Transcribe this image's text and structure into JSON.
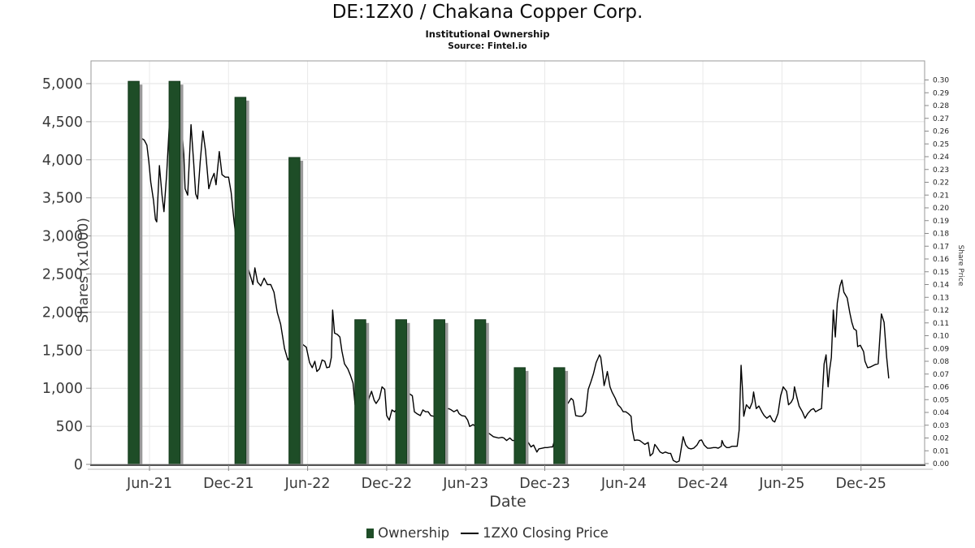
{
  "header": {
    "title": "DE:1ZX0 / Chakana Copper Corp.",
    "subtitle": "Institutional Ownership",
    "source": "Source: Fintel.io"
  },
  "axes": {
    "x": {
      "label": "Date",
      "ticks": [
        "Jun-21",
        "Dec-21",
        "Jun-22",
        "Dec-22",
        "Jun-23",
        "Dec-23",
        "Jun-24",
        "Dec-24",
        "Jun-25",
        "Dec-25"
      ],
      "tick_month_offsets": [
        0,
        6,
        12,
        18,
        24,
        30,
        36,
        42,
        48,
        54
      ]
    },
    "y_left": {
      "label": "Shares (x1000)",
      "min": 0,
      "max": 5000,
      "step": 500
    },
    "y_right": {
      "label": "Share Price",
      "min": 0.0,
      "max": 0.3,
      "step": 0.01
    }
  },
  "legend": {
    "ownership": "Ownership",
    "closing_price": "1ZX0 Closing Price"
  },
  "colors": {
    "bar": "#1e4d27",
    "bar_edge": "#163a1d",
    "bar_shadow": "#9a9a9a",
    "line": "#000000",
    "grid_h": "#e0e0e0",
    "grid_v": "#e9e9e9",
    "border": "#9a9a9a",
    "axis_bottom": "#555555",
    "axis_under": "#bbbbbb",
    "tick": "#888888",
    "tick_text": "#3a3a3a"
  },
  "chart_data": {
    "type": "combo",
    "x_unit": "months since Jun-2021 (fractional)",
    "title": "DE:1ZX0 / Chakana Copper Corp. Institutional Ownership",
    "bars": {
      "name": "Ownership (Shares x1000)",
      "points": [
        {
          "m": -1.2,
          "date": "May-21",
          "shares": 5030
        },
        {
          "m": 1.9,
          "date": "Aug-21",
          "shares": 5030
        },
        {
          "m": 6.9,
          "date": "Jan-22",
          "shares": 4820
        },
        {
          "m": 11.0,
          "date": "May-22",
          "shares": 4030
        },
        {
          "m": 16.0,
          "date": "Oct-22",
          "shares": 1900
        },
        {
          "m": 19.1,
          "date": "Jan-23",
          "shares": 1900
        },
        {
          "m": 22.0,
          "date": "Apr-23",
          "shares": 1900
        },
        {
          "m": 25.1,
          "date": "Jul-23",
          "shares": 1900
        },
        {
          "m": 28.1,
          "date": "Oct-23",
          "shares": 1270
        },
        {
          "m": 31.1,
          "date": "Jan-24",
          "shares": 1270
        }
      ]
    },
    "line": {
      "name": "1ZX0 Closing Price",
      "points": [
        [
          -0.7,
          0.255
        ],
        [
          -0.4,
          0.253
        ],
        [
          -0.2,
          0.249
        ],
        [
          -0.05,
          0.236
        ],
        [
          0.1,
          0.22
        ],
        [
          0.3,
          0.206
        ],
        [
          0.45,
          0.191
        ],
        [
          0.55,
          0.189
        ],
        [
          0.75,
          0.233
        ],
        [
          0.95,
          0.21
        ],
        [
          1.1,
          0.197
        ],
        [
          1.3,
          0.226
        ],
        [
          1.5,
          0.264
        ],
        [
          1.6,
          0.274
        ],
        [
          2.4,
          0.269
        ],
        [
          2.6,
          0.242
        ],
        [
          2.7,
          0.215
        ],
        [
          2.9,
          0.21
        ],
        [
          3.15,
          0.265
        ],
        [
          3.35,
          0.236
        ],
        [
          3.5,
          0.211
        ],
        [
          3.65,
          0.207
        ],
        [
          3.85,
          0.236
        ],
        [
          4.05,
          0.26
        ],
        [
          4.25,
          0.245
        ],
        [
          4.5,
          0.215
        ],
        [
          4.7,
          0.222
        ],
        [
          4.9,
          0.227
        ],
        [
          5.05,
          0.218
        ],
        [
          5.3,
          0.244
        ],
        [
          5.5,
          0.226
        ],
        [
          5.75,
          0.224
        ],
        [
          6.0,
          0.224
        ],
        [
          6.2,
          0.212
        ],
        [
          6.4,
          0.191
        ],
        [
          6.55,
          0.178
        ],
        [
          7.45,
          0.154
        ],
        [
          7.65,
          0.147
        ],
        [
          7.85,
          0.14
        ],
        [
          8.0,
          0.153
        ],
        [
          8.2,
          0.142
        ],
        [
          8.45,
          0.139
        ],
        [
          8.7,
          0.145
        ],
        [
          8.95,
          0.14
        ],
        [
          9.2,
          0.14
        ],
        [
          9.45,
          0.134
        ],
        [
          9.7,
          0.118
        ],
        [
          9.95,
          0.109
        ],
        [
          10.25,
          0.09
        ],
        [
          10.5,
          0.081
        ],
        [
          11.4,
          0.0965
        ],
        [
          11.65,
          0.093
        ],
        [
          11.9,
          0.091
        ],
        [
          12.15,
          0.079
        ],
        [
          12.35,
          0.075
        ],
        [
          12.55,
          0.08
        ],
        [
          12.7,
          0.072
        ],
        [
          12.9,
          0.074
        ],
        [
          13.1,
          0.081
        ],
        [
          13.3,
          0.08
        ],
        [
          13.45,
          0.075
        ],
        [
          13.65,
          0.0755
        ],
        [
          13.8,
          0.083
        ],
        [
          13.9,
          0.12
        ],
        [
          14.05,
          0.102
        ],
        [
          14.25,
          0.101
        ],
        [
          14.45,
          0.099
        ],
        [
          14.6,
          0.088
        ],
        [
          14.8,
          0.078
        ],
        [
          15.05,
          0.074
        ],
        [
          15.25,
          0.069
        ],
        [
          15.45,
          0.063
        ],
        [
          15.6,
          0.046
        ],
        [
          16.5,
          0.044
        ],
        [
          16.65,
          0.051
        ],
        [
          16.85,
          0.0565
        ],
        [
          17.05,
          0.0495
        ],
        [
          17.2,
          0.047
        ],
        [
          17.45,
          0.051
        ],
        [
          17.65,
          0.06
        ],
        [
          17.85,
          0.058
        ],
        [
          18.0,
          0.0375
        ],
        [
          18.2,
          0.034
        ],
        [
          18.4,
          0.042
        ],
        [
          18.6,
          0.0405
        ],
        [
          19.55,
          0.053
        ],
        [
          19.75,
          0.0545
        ],
        [
          19.95,
          0.053
        ],
        [
          20.1,
          0.0405
        ],
        [
          20.3,
          0.039
        ],
        [
          20.55,
          0.0375
        ],
        [
          20.75,
          0.042
        ],
        [
          20.95,
          0.0405
        ],
        [
          21.15,
          0.0405
        ],
        [
          21.35,
          0.0375
        ],
        [
          21.55,
          0.037
        ],
        [
          22.45,
          0.042
        ],
        [
          22.7,
          0.043
        ],
        [
          22.9,
          0.042
        ],
        [
          23.1,
          0.0405
        ],
        [
          23.35,
          0.042
        ],
        [
          23.5,
          0.039
        ],
        [
          23.7,
          0.0375
        ],
        [
          23.95,
          0.037
        ],
        [
          24.15,
          0.034
        ],
        [
          24.3,
          0.029
        ],
        [
          24.55,
          0.0305
        ],
        [
          25.5,
          0.025
        ],
        [
          25.7,
          0.024
        ],
        [
          25.85,
          0.023
        ],
        [
          26.1,
          0.021
        ],
        [
          26.3,
          0.0205
        ],
        [
          26.5,
          0.02
        ],
        [
          26.75,
          0.0205
        ],
        [
          26.9,
          0.02
        ],
        [
          27.1,
          0.018
        ],
        [
          27.35,
          0.02
        ],
        [
          27.55,
          0.018
        ],
        [
          27.7,
          0.018
        ],
        [
          28.6,
          0.015
        ],
        [
          28.75,
          0.0165
        ],
        [
          28.95,
          0.013
        ],
        [
          29.15,
          0.0145
        ],
        [
          29.4,
          0.009
        ],
        [
          29.55,
          0.0115
        ],
        [
          29.8,
          0.012
        ],
        [
          30.0,
          0.0125
        ],
        [
          30.2,
          0.0125
        ],
        [
          30.45,
          0.013
        ],
        [
          30.6,
          0.013
        ],
        [
          31.55,
          0.048
        ],
        [
          31.75,
          0.047
        ],
        [
          32.0,
          0.051
        ],
        [
          32.15,
          0.0495
        ],
        [
          32.35,
          0.0375
        ],
        [
          32.6,
          0.037
        ],
        [
          32.85,
          0.037
        ],
        [
          33.1,
          0.04
        ],
        [
          33.3,
          0.058
        ],
        [
          33.5,
          0.064
        ],
        [
          33.7,
          0.0705
        ],
        [
          33.9,
          0.079
        ],
        [
          34.15,
          0.085
        ],
        [
          34.25,
          0.083
        ],
        [
          34.4,
          0.0705
        ],
        [
          34.5,
          0.061
        ],
        [
          34.65,
          0.067
        ],
        [
          34.75,
          0.072
        ],
        [
          34.95,
          0.06
        ],
        [
          35.1,
          0.056
        ],
        [
          35.35,
          0.051
        ],
        [
          35.55,
          0.046
        ],
        [
          35.75,
          0.044
        ],
        [
          35.95,
          0.0405
        ],
        [
          36.15,
          0.0405
        ],
        [
          36.35,
          0.039
        ],
        [
          36.55,
          0.037
        ],
        [
          36.65,
          0.026
        ],
        [
          36.8,
          0.018
        ],
        [
          37.0,
          0.0185
        ],
        [
          37.2,
          0.018
        ],
        [
          37.4,
          0.0165
        ],
        [
          37.6,
          0.015
        ],
        [
          37.85,
          0.0165
        ],
        [
          38.0,
          0.006
        ],
        [
          38.2,
          0.008
        ],
        [
          38.35,
          0.015
        ],
        [
          38.5,
          0.013
        ],
        [
          38.75,
          0.009
        ],
        [
          38.95,
          0.008
        ],
        [
          39.15,
          0.009
        ],
        [
          39.4,
          0.008
        ],
        [
          39.55,
          0.008
        ],
        [
          39.75,
          0.0025
        ],
        [
          40.0,
          0.001
        ],
        [
          40.2,
          0.002
        ],
        [
          40.5,
          0.021
        ],
        [
          40.7,
          0.0145
        ],
        [
          40.9,
          0.012
        ],
        [
          41.1,
          0.0115
        ],
        [
          41.3,
          0.012
        ],
        [
          41.55,
          0.0145
        ],
        [
          41.75,
          0.018
        ],
        [
          41.9,
          0.0185
        ],
        [
          42.1,
          0.0145
        ],
        [
          42.35,
          0.012
        ],
        [
          42.55,
          0.012
        ],
        [
          42.8,
          0.0125
        ],
        [
          43.0,
          0.0125
        ],
        [
          43.15,
          0.012
        ],
        [
          43.4,
          0.0135
        ],
        [
          43.45,
          0.018
        ],
        [
          43.6,
          0.0145
        ],
        [
          43.8,
          0.0125
        ],
        [
          44.0,
          0.0125
        ],
        [
          44.2,
          0.0135
        ],
        [
          44.4,
          0.0135
        ],
        [
          44.6,
          0.0135
        ],
        [
          44.75,
          0.026
        ],
        [
          44.9,
          0.0768
        ],
        [
          45.0,
          0.058
        ],
        [
          45.1,
          0.037
        ],
        [
          45.3,
          0.046
        ],
        [
          45.55,
          0.043
        ],
        [
          45.75,
          0.048
        ],
        [
          45.85,
          0.056
        ],
        [
          46.05,
          0.043
        ],
        [
          46.25,
          0.045
        ],
        [
          46.5,
          0.04
        ],
        [
          46.65,
          0.0375
        ],
        [
          46.85,
          0.0355
        ],
        [
          47.1,
          0.0375
        ],
        [
          47.3,
          0.0335
        ],
        [
          47.45,
          0.0325
        ],
        [
          47.7,
          0.039
        ],
        [
          47.9,
          0.053
        ],
        [
          48.1,
          0.06
        ],
        [
          48.35,
          0.0565
        ],
        [
          48.5,
          0.046
        ],
        [
          48.7,
          0.048
        ],
        [
          48.85,
          0.051
        ],
        [
          48.95,
          0.06
        ],
        [
          49.15,
          0.051
        ],
        [
          49.3,
          0.045
        ],
        [
          49.55,
          0.0405
        ],
        [
          49.75,
          0.0355
        ],
        [
          49.95,
          0.039
        ],
        [
          50.2,
          0.042
        ],
        [
          50.4,
          0.043
        ],
        [
          50.55,
          0.0405
        ],
        [
          50.8,
          0.042
        ],
        [
          51.0,
          0.043
        ],
        [
          51.2,
          0.078
        ],
        [
          51.35,
          0.085
        ],
        [
          51.5,
          0.06
        ],
        [
          51.6,
          0.072
        ],
        [
          51.75,
          0.083
        ],
        [
          51.9,
          0.12
        ],
        [
          52.05,
          0.099
        ],
        [
          52.2,
          0.1255
        ],
        [
          52.4,
          0.139
        ],
        [
          52.55,
          0.1435
        ],
        [
          52.7,
          0.134
        ],
        [
          52.95,
          0.1295
        ],
        [
          53.15,
          0.118
        ],
        [
          53.3,
          0.1105
        ],
        [
          53.45,
          0.1055
        ],
        [
          53.65,
          0.104
        ],
        [
          53.75,
          0.0915
        ],
        [
          53.95,
          0.0925
        ],
        [
          54.2,
          0.0875
        ],
        [
          54.3,
          0.08
        ],
        [
          54.5,
          0.075
        ],
        [
          54.7,
          0.0755
        ],
        [
          54.9,
          0.0765
        ],
        [
          55.1,
          0.0775
        ],
        [
          55.3,
          0.078
        ],
        [
          55.55,
          0.117
        ],
        [
          55.75,
          0.1105
        ],
        [
          55.95,
          0.083
        ],
        [
          56.1,
          0.067
        ]
      ]
    }
  }
}
